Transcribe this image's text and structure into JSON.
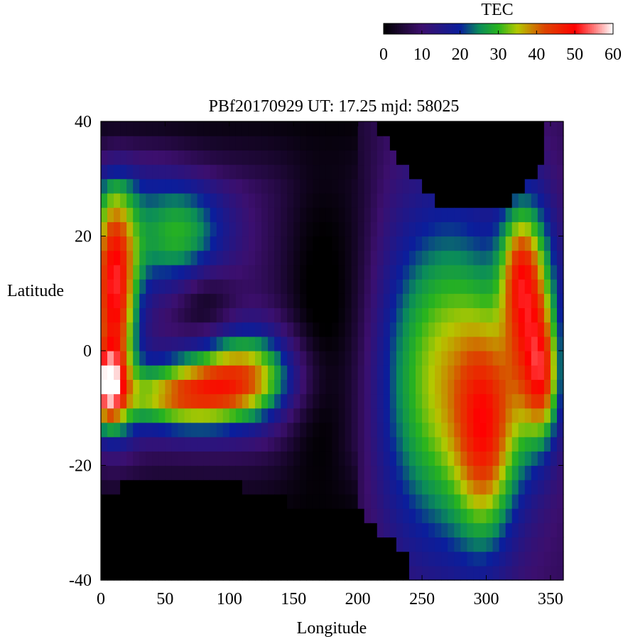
{
  "chart_data": {
    "type": "heatmap",
    "title": "PBf20170929  UT: 17.25  mjd: 58025",
    "xlabel": "Longitude",
    "ylabel": "Latitude",
    "xlim": [
      0,
      360
    ],
    "ylim": [
      -40,
      40
    ],
    "x_ticks": [
      "0",
      "50",
      "100",
      "150",
      "200",
      "250",
      "300",
      "350"
    ],
    "y_ticks": [
      "40",
      "20",
      "0",
      "-20",
      "-40"
    ],
    "x_tick_values": [
      0,
      50,
      100,
      150,
      200,
      250,
      300,
      350
    ],
    "y_tick_values": [
      40,
      20,
      0,
      -20,
      -40
    ],
    "colorbar": {
      "label": "TEC",
      "range": [
        0,
        60
      ],
      "ticks": [
        "0",
        "10",
        "20",
        "30",
        "40",
        "50",
        "60"
      ],
      "tick_values": [
        0,
        10,
        20,
        30,
        40,
        50,
        60
      ],
      "stops": [
        [
          0,
          "#000000"
        ],
        [
          10,
          "#3c0f6e"
        ],
        [
          20,
          "#0a1e9c"
        ],
        [
          25,
          "#0a8c5a"
        ],
        [
          30,
          "#28b41e"
        ],
        [
          35,
          "#b4c800"
        ],
        [
          42,
          "#dc4600"
        ],
        [
          50,
          "#ff0000"
        ],
        [
          55,
          "#ff7878"
        ],
        [
          60,
          "#ffffff"
        ]
      ]
    },
    "grid": false,
    "nodata_lat_band": "approx. -40..-25 (west), 25..40 (east)"
  }
}
